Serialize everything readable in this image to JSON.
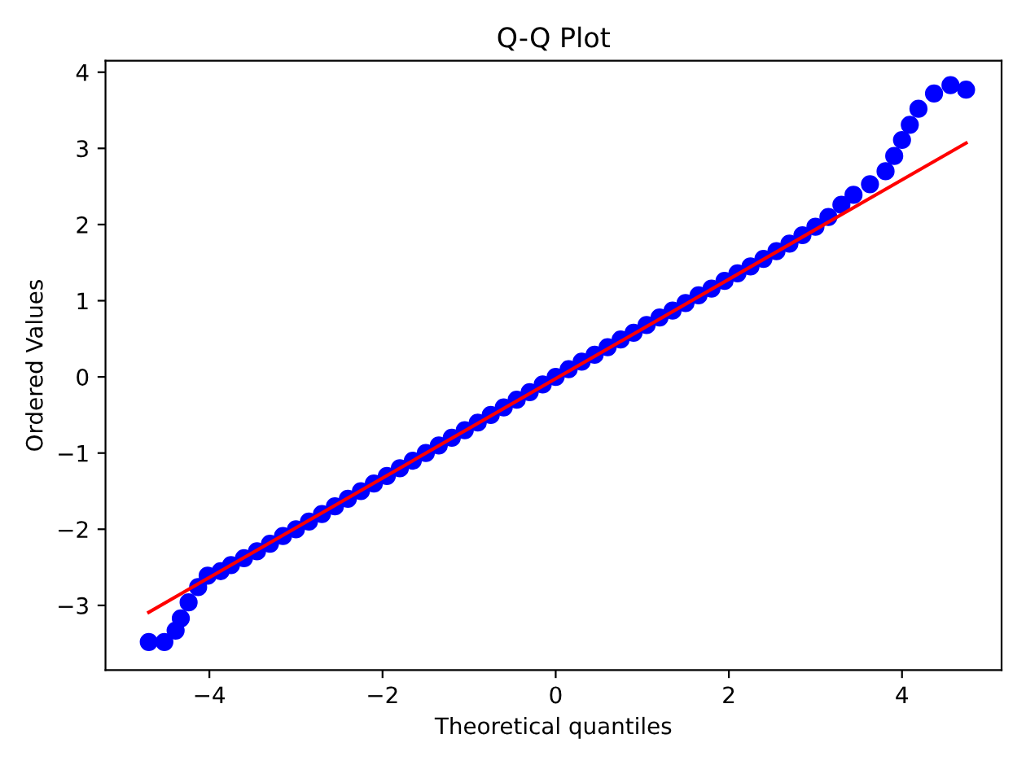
{
  "chart_data": {
    "type": "scatter",
    "title": "Q-Q Plot",
    "xlabel": "Theoretical quantiles",
    "ylabel": "Ordered Values",
    "xlim": [
      -5.2,
      5.15
    ],
    "ylim": [
      -3.85,
      4.15
    ],
    "xticks": [
      {
        "value": -4,
        "label": "−4"
      },
      {
        "value": -2,
        "label": "−2"
      },
      0,
      2,
      4
    ],
    "yticks": [
      {
        "value": -3,
        "label": "−3"
      },
      {
        "value": -2,
        "label": "−2"
      },
      {
        "value": -1,
        "label": "−1"
      },
      0,
      1,
      2,
      3,
      4
    ],
    "grid": false,
    "legend": false,
    "series": [
      {
        "color": "#0000ff",
        "marker": "circle",
        "x": [
          -4.7,
          -4.52,
          -4.39,
          -4.33,
          -4.24,
          -4.13,
          -4.02,
          -3.87,
          -3.75,
          -3.6,
          -3.45,
          -3.3,
          -3.15,
          -3.0,
          -2.85,
          -2.7,
          -2.55,
          -2.4,
          -2.25,
          -2.1,
          -1.95,
          -1.8,
          -1.65,
          -1.5,
          -1.35,
          -1.2,
          -1.05,
          -0.9,
          -0.75,
          -0.6,
          -0.45,
          -0.3,
          -0.15,
          0,
          0.15,
          0.3,
          0.45,
          0.6,
          0.75,
          0.9,
          1.05,
          1.2,
          1.35,
          1.5,
          1.65,
          1.8,
          1.95,
          2.1,
          2.25,
          2.4,
          2.55,
          2.7,
          2.85,
          3.0,
          3.15,
          3.3,
          3.44,
          3.63,
          3.81,
          3.91,
          4.0,
          4.09,
          4.19,
          4.37,
          4.56,
          4.74
        ],
        "values": [
          -3.48,
          -3.48,
          -3.33,
          -3.17,
          -2.96,
          -2.76,
          -2.61,
          -2.55,
          -2.47,
          -2.38,
          -2.29,
          -2.19,
          -2.09,
          -2.0,
          -1.9,
          -1.8,
          -1.7,
          -1.6,
          -1.5,
          -1.4,
          -1.3,
          -1.2,
          -1.1,
          -1.0,
          -0.9,
          -0.8,
          -0.7,
          -0.6,
          -0.5,
          -0.4,
          -0.3,
          -0.2,
          -0.1,
          0,
          0.1,
          0.2,
          0.29,
          0.39,
          0.49,
          0.58,
          0.68,
          0.78,
          0.87,
          0.97,
          1.07,
          1.16,
          1.26,
          1.36,
          1.45,
          1.55,
          1.65,
          1.75,
          1.86,
          1.97,
          2.1,
          2.26,
          2.39,
          2.53,
          2.7,
          2.9,
          3.11,
          3.31,
          3.52,
          3.72,
          3.83,
          3.77
        ]
      },
      {
        "type": "line",
        "color": "#ff0000",
        "line_style": "solid",
        "x": [
          -4.7,
          4.74
        ],
        "values": [
          -3.09,
          3.07
        ]
      }
    ]
  }
}
